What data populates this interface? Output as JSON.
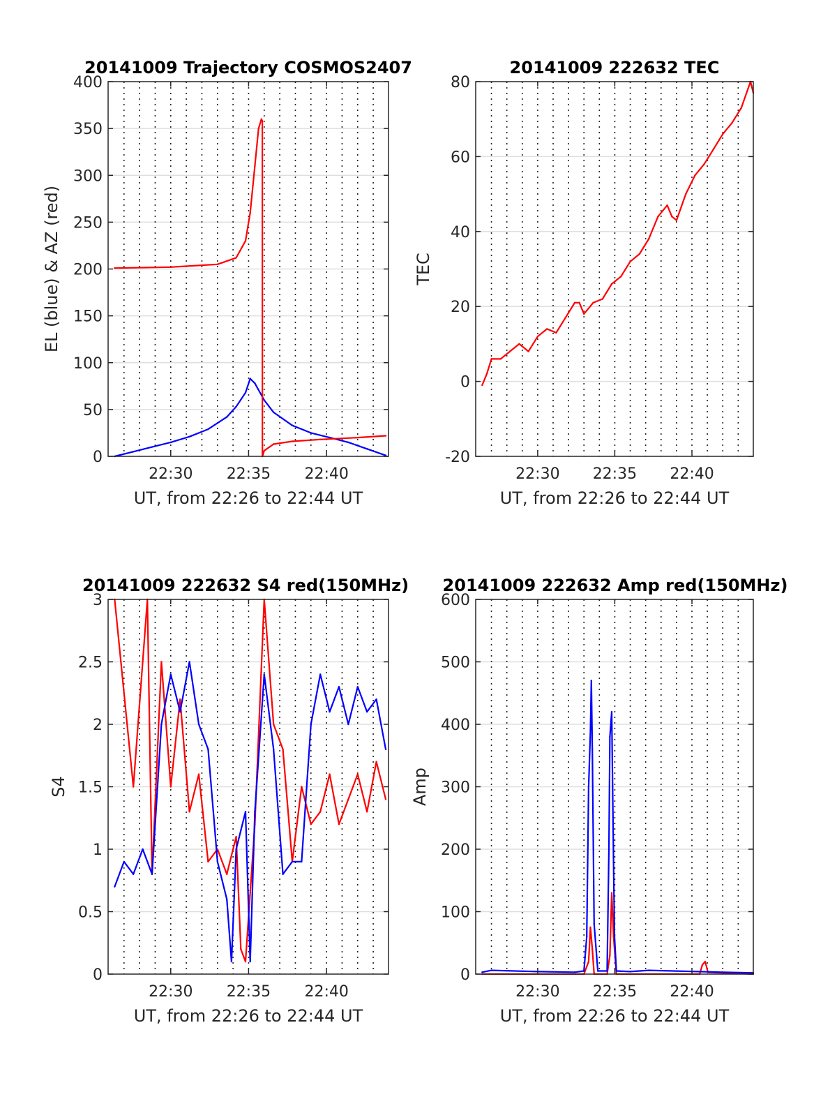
{
  "chart_data": [
    {
      "type": "line",
      "title": "20141009 Trajectory COSMOS2407",
      "xlabel": "UT, from 22:26 to 22:44 UT",
      "ylabel": "EL (blue) & AZ (red)",
      "xlim": [
        22.433,
        22.733
      ],
      "ylim": [
        0,
        400
      ],
      "yticks": [
        0,
        50,
        100,
        150,
        200,
        250,
        300,
        350,
        400
      ],
      "xticks": [
        {
          "v": 22.5,
          "label": "22:30"
        },
        {
          "v": 22.5833,
          "label": "22:35"
        },
        {
          "v": 22.6667,
          "label": "22:40"
        }
      ],
      "grid": true,
      "series": [
        {
          "color": "#0000ff",
          "x": [
            22.44,
            22.46,
            22.48,
            22.5,
            22.52,
            22.54,
            22.56,
            22.57,
            22.58,
            22.585,
            22.59,
            22.6,
            22.61,
            22.63,
            22.65,
            22.67,
            22.69,
            22.71,
            22.73
          ],
          "values": [
            0,
            5,
            10,
            15,
            21,
            29,
            42,
            53,
            68,
            83,
            78,
            60,
            47,
            33,
            25,
            20,
            15,
            8,
            1
          ]
        },
        {
          "color": "#ff0000",
          "x": [
            22.44,
            22.5,
            22.55,
            22.57,
            22.58,
            22.585,
            22.59,
            22.594,
            22.597,
            22.598,
            22.5981,
            22.6,
            22.61,
            22.63,
            22.66,
            22.7,
            22.73
          ],
          "values": [
            201,
            202,
            205,
            212,
            230,
            260,
            310,
            350,
            360,
            358,
            0,
            6,
            13,
            16,
            18,
            20,
            22
          ]
        }
      ]
    },
    {
      "type": "line",
      "title": "20141009 222632 TEC",
      "xlabel": "UT, from 22:26 to 22:44 UT",
      "ylabel": "TEC",
      "xlim": [
        22.433,
        22.733
      ],
      "ylim": [
        -20,
        80
      ],
      "yticks": [
        -20,
        0,
        20,
        40,
        60,
        80
      ],
      "xticks": [
        {
          "v": 22.5,
          "label": "22:30"
        },
        {
          "v": 22.5833,
          "label": "22:35"
        },
        {
          "v": 22.6667,
          "label": "22:40"
        }
      ],
      "grid": true,
      "series": [
        {
          "color": "#ff0000",
          "x": [
            22.44,
            22.445,
            22.45,
            22.46,
            22.47,
            22.48,
            22.49,
            22.5,
            22.51,
            22.52,
            22.53,
            22.54,
            22.545,
            22.55,
            22.56,
            22.57,
            22.58,
            22.59,
            22.6,
            22.61,
            22.62,
            22.63,
            22.64,
            22.645,
            22.65,
            22.66,
            22.67,
            22.68,
            22.69,
            22.7,
            22.71,
            22.72,
            22.73,
            22.733
          ],
          "values": [
            -1,
            2,
            6,
            6,
            8,
            10,
            8,
            12,
            14,
            13,
            17,
            21,
            21,
            18,
            21,
            22,
            26,
            28,
            32,
            34,
            38,
            44,
            47,
            44,
            43,
            50,
            55,
            58,
            62,
            66,
            69,
            73,
            80,
            77
          ]
        }
      ]
    },
    {
      "type": "line",
      "title": "20141009 222632 S4 red(150MHz)",
      "xlabel": "UT, from 22:26 to 22:44 UT",
      "ylabel": "S4",
      "xlim": [
        22.433,
        22.733
      ],
      "ylim": [
        0,
        3
      ],
      "yticks": [
        0,
        0.5,
        1,
        1.5,
        2,
        2.5,
        3
      ],
      "xticks": [
        {
          "v": 22.5,
          "label": "22:30"
        },
        {
          "v": 22.5833,
          "label": "22:35"
        },
        {
          "v": 22.6667,
          "label": "22:40"
        }
      ],
      "grid": true,
      "series": [
        {
          "color": "#ff0000",
          "x": [
            22.44,
            22.46,
            22.475,
            22.48,
            22.49,
            22.5,
            22.51,
            22.52,
            22.53,
            22.54,
            22.55,
            22.56,
            22.57,
            22.575,
            22.58,
            22.59,
            22.6,
            22.61,
            22.62,
            22.63,
            22.64,
            22.65,
            22.66,
            22.67,
            22.68,
            22.69,
            22.7,
            22.71,
            22.72,
            22.73
          ],
          "values": [
            3,
            1.5,
            3,
            0.8,
            2.5,
            1.5,
            2.2,
            1.3,
            1.6,
            0.9,
            1.0,
            0.8,
            1.1,
            0.2,
            0.1,
            1.2,
            3,
            2.0,
            1.8,
            0.9,
            1.5,
            1.2,
            1.3,
            1.6,
            1.2,
            1.4,
            1.6,
            1.3,
            1.7,
            1.4
          ]
        },
        {
          "color": "#0000ff",
          "x": [
            22.44,
            22.45,
            22.46,
            22.47,
            22.48,
            22.49,
            22.5,
            22.51,
            22.52,
            22.53,
            22.54,
            22.55,
            22.56,
            22.565,
            22.57,
            22.58,
            22.585,
            22.59,
            22.6,
            22.61,
            22.62,
            22.63,
            22.64,
            22.65,
            22.66,
            22.67,
            22.68,
            22.69,
            22.7,
            22.71,
            22.72,
            22.73
          ],
          "values": [
            0.7,
            0.9,
            0.8,
            1.0,
            0.8,
            2.0,
            2.4,
            2.1,
            2.5,
            2.0,
            1.8,
            0.9,
            0.6,
            0.1,
            1.0,
            1.3,
            0.1,
            1.3,
            2.4,
            1.8,
            0.8,
            0.9,
            0.9,
            2.0,
            2.4,
            2.1,
            2.3,
            2.0,
            2.3,
            2.1,
            2.2,
            1.8
          ]
        }
      ]
    },
    {
      "type": "line",
      "title": "20141009 222632 Amp red(150MHz)",
      "xlabel": "UT, from 22:26 to 22:44 UT",
      "ylabel": "Amp",
      "xlim": [
        22.433,
        22.733
      ],
      "ylim": [
        0,
        600
      ],
      "yticks": [
        0,
        100,
        200,
        300,
        400,
        500,
        600
      ],
      "xticks": [
        {
          "v": 22.5,
          "label": "22:30"
        },
        {
          "v": 22.5833,
          "label": "22:35"
        },
        {
          "v": 22.6667,
          "label": "22:40"
        }
      ],
      "grid": true,
      "series": [
        {
          "color": "#ff0000",
          "x": [
            22.44,
            22.55,
            22.555,
            22.557,
            22.559,
            22.561,
            22.565,
            22.575,
            22.578,
            22.58,
            22.582,
            22.585,
            22.6,
            22.675,
            22.678,
            22.681,
            22.684,
            22.733
          ],
          "values": [
            0,
            0,
            20,
            75,
            40,
            0,
            0,
            0,
            30,
            130,
            60,
            0,
            0,
            0,
            15,
            20,
            3,
            0
          ]
        },
        {
          "color": "#0000ff",
          "x": [
            22.44,
            22.45,
            22.5,
            22.54,
            22.55,
            22.553,
            22.555,
            22.557,
            22.558,
            22.559,
            22.561,
            22.565,
            22.575,
            22.577,
            22.578,
            22.58,
            22.581,
            22.583,
            22.585,
            22.6,
            22.62,
            22.7,
            22.733
          ],
          "values": [
            3,
            6,
            4,
            3,
            5,
            60,
            300,
            390,
            470,
            360,
            80,
            5,
            5,
            200,
            380,
            420,
            300,
            60,
            5,
            4,
            6,
            3,
            2
          ]
        }
      ]
    }
  ]
}
